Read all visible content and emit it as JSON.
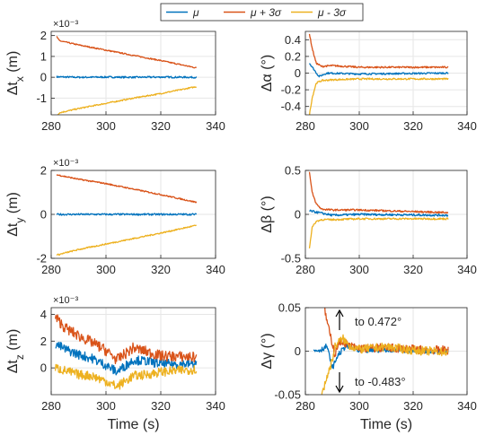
{
  "legend": {
    "items": [
      {
        "label": "μ",
        "color": "#0072BD"
      },
      {
        "label": "μ + 3σ",
        "color": "#D95319"
      },
      {
        "label": "μ - 3σ",
        "color": "#EDB120"
      }
    ]
  },
  "chart_data": [
    {
      "type": "line",
      "panel": "tx",
      "ylabel_main": "Δt",
      "ylabel_sub": "x",
      "ylabel_unit": " (m)",
      "xlabel": "",
      "exponent": "×10⁻³",
      "xlim": [
        280,
        340
      ],
      "ylim": [
        -1.8,
        2.2
      ],
      "xticks": [
        280,
        300,
        320,
        340
      ],
      "yticks": [
        -1,
        0,
        1,
        2
      ],
      "grid": true,
      "series": [
        {
          "name": "μ",
          "color": "#0072BD",
          "x": [
            282,
            290,
            300,
            310,
            320,
            333
          ],
          "y": [
            0.02,
            0.0,
            0.01,
            0.0,
            0.01,
            0.0
          ],
          "noise": 0.04
        },
        {
          "name": "μ + 3σ",
          "color": "#D95319",
          "x": [
            282,
            283,
            290,
            300,
            310,
            320,
            333
          ],
          "y": [
            1.95,
            1.75,
            1.55,
            1.3,
            1.05,
            0.8,
            0.45
          ],
          "noise": 0.03
        },
        {
          "name": "μ - 3σ",
          "color": "#EDB120",
          "x": [
            282,
            283,
            290,
            300,
            310,
            320,
            333
          ],
          "y": [
            -1.85,
            -1.7,
            -1.5,
            -1.25,
            -1.0,
            -0.78,
            -0.45
          ],
          "noise": 0.03
        }
      ]
    },
    {
      "type": "line",
      "panel": "alpha",
      "ylabel_main": "Δα",
      "ylabel_sub": "",
      "ylabel_unit": " (°)",
      "xlabel": "",
      "xlim": [
        280,
        340
      ],
      "ylim": [
        -0.5,
        0.5
      ],
      "xticks": [
        280,
        300,
        320,
        340
      ],
      "yticks": [
        -0.4,
        -0.2,
        0,
        0.2,
        0.4
      ],
      "grid": true,
      "series": [
        {
          "name": "μ",
          "color": "#0072BD",
          "x": [
            281.5,
            285,
            288,
            300,
            333
          ],
          "y": [
            0.12,
            -0.04,
            0.0,
            -0.01,
            0.0
          ],
          "noise": 0.01
        },
        {
          "name": "μ + 3σ",
          "color": "#D95319",
          "x": [
            281.5,
            282.5,
            284,
            286,
            290,
            300,
            333
          ],
          "y": [
            0.47,
            0.3,
            0.12,
            0.08,
            0.09,
            0.07,
            0.07
          ],
          "noise": 0.01
        },
        {
          "name": "μ - 3σ",
          "color": "#EDB120",
          "x": [
            281.5,
            282.5,
            284,
            286,
            290,
            300,
            333
          ],
          "y": [
            -0.5,
            -0.3,
            -0.12,
            -0.09,
            -0.08,
            -0.07,
            -0.07
          ],
          "noise": 0.01
        }
      ]
    },
    {
      "type": "line",
      "panel": "ty",
      "ylabel_main": "Δt",
      "ylabel_sub": "y",
      "ylabel_unit": " (m)",
      "xlabel": "",
      "exponent": "×10⁻³",
      "xlim": [
        280,
        340
      ],
      "ylim": [
        -2,
        2
      ],
      "xticks": [
        280,
        300,
        320,
        340
      ],
      "yticks": [
        -2,
        0,
        2
      ],
      "grid": true,
      "series": [
        {
          "name": "μ",
          "color": "#0072BD",
          "x": [
            282,
            300,
            333
          ],
          "y": [
            0.0,
            0.0,
            0.0
          ],
          "noise": 0.04
        },
        {
          "name": "μ + 3σ",
          "color": "#D95319",
          "x": [
            282,
            290,
            300,
            310,
            320,
            333
          ],
          "y": [
            1.8,
            1.6,
            1.4,
            1.15,
            0.9,
            0.55
          ],
          "noise": 0.03
        },
        {
          "name": "μ - 3σ",
          "color": "#EDB120",
          "x": [
            282,
            290,
            300,
            310,
            320,
            333
          ],
          "y": [
            -1.85,
            -1.6,
            -1.35,
            -1.1,
            -0.85,
            -0.5
          ],
          "noise": 0.03
        }
      ]
    },
    {
      "type": "line",
      "panel": "beta",
      "ylabel_main": "Δβ",
      "ylabel_sub": "",
      "ylabel_unit": " (°)",
      "xlabel": "",
      "xlim": [
        280,
        340
      ],
      "ylim": [
        -0.5,
        0.5
      ],
      "xticks": [
        280,
        300,
        320,
        340
      ],
      "yticks": [
        -0.5,
        0,
        0.5
      ],
      "grid": true,
      "series": [
        {
          "name": "μ",
          "color": "#0072BD",
          "x": [
            281.5,
            285,
            290,
            300,
            333
          ],
          "y": [
            0.04,
            0.02,
            -0.01,
            0.0,
            -0.01
          ],
          "noise": 0.012
        },
        {
          "name": "μ + 3σ",
          "color": "#D95319",
          "x": [
            281.5,
            282.5,
            284,
            286,
            290,
            300,
            333
          ],
          "y": [
            0.48,
            0.25,
            0.12,
            0.06,
            0.05,
            0.05,
            0.02
          ],
          "noise": 0.01
        },
        {
          "name": "μ - 3σ",
          "color": "#EDB120",
          "x": [
            281.5,
            282.5,
            284,
            286,
            290,
            300,
            333
          ],
          "y": [
            -0.38,
            -0.15,
            -0.08,
            -0.06,
            -0.06,
            -0.05,
            -0.05
          ],
          "noise": 0.01
        }
      ]
    },
    {
      "type": "line",
      "panel": "tz",
      "ylabel_main": "Δt",
      "ylabel_sub": "z",
      "ylabel_unit": " (m)",
      "xlabel": "Time (s)",
      "exponent": "×10⁻³",
      "xlim": [
        280,
        340
      ],
      "ylim": [
        -2,
        4.5
      ],
      "xticks": [
        280,
        300,
        320,
        340
      ],
      "yticks": [
        0,
        2,
        4
      ],
      "grid": true,
      "series": [
        {
          "name": "μ",
          "color": "#0072BD",
          "x": [
            281.5,
            285,
            290,
            295,
            300,
            304,
            310,
            315,
            320,
            333
          ],
          "y": [
            1.8,
            1.4,
            1.0,
            0.7,
            0.2,
            -0.3,
            0.6,
            0.5,
            0.3,
            0.3
          ],
          "noise": 0.35
        },
        {
          "name": "μ + 3σ",
          "color": "#D95319",
          "x": [
            281.5,
            285,
            290,
            295,
            300,
            304,
            310,
            315,
            320,
            333
          ],
          "y": [
            3.8,
            3.0,
            2.4,
            1.9,
            1.3,
            0.6,
            1.5,
            1.2,
            0.9,
            0.8
          ],
          "noise": 0.4
        },
        {
          "name": "μ - 3σ",
          "color": "#EDB120",
          "x": [
            281.5,
            285,
            290,
            295,
            300,
            304,
            310,
            315,
            320,
            333
          ],
          "y": [
            0.0,
            -0.2,
            -0.5,
            -0.6,
            -1.0,
            -1.4,
            -0.6,
            -0.5,
            -0.3,
            -0.1
          ],
          "noise": 0.35
        }
      ]
    },
    {
      "type": "line",
      "panel": "gamma",
      "ylabel_main": "Δγ",
      "ylabel_sub": "",
      "ylabel_unit": " (°)",
      "xlabel": "Time (s)",
      "xlim": [
        280,
        340
      ],
      "ylim": [
        -0.05,
        0.05
      ],
      "xticks": [
        280,
        300,
        320,
        340
      ],
      "yticks": [
        -0.05,
        0,
        0.05
      ],
      "grid": true,
      "annotations": [
        {
          "text": "to 0.472°",
          "direction": "up"
        },
        {
          "text": "to -0.483°",
          "direction": "down"
        }
      ],
      "series": [
        {
          "name": "μ",
          "color": "#0072BD",
          "x": [
            283,
            286,
            288,
            290,
            292,
            295,
            300,
            310,
            320,
            333
          ],
          "y": [
            0.0,
            0.002,
            0.006,
            -0.02,
            -0.005,
            0.006,
            0.0,
            0.002,
            0.001,
            0.0
          ],
          "noise": 0.003
        },
        {
          "name": "μ + 3σ",
          "color": "#D95319",
          "x": [
            287,
            288,
            289,
            290,
            291,
            292,
            294,
            296,
            300,
            310,
            320,
            333
          ],
          "y": [
            0.05,
            0.035,
            0.02,
            0.01,
            -0.005,
            0.008,
            0.012,
            0.006,
            0.003,
            0.004,
            0.002,
            0.001
          ],
          "noise": 0.005
        },
        {
          "name": "μ - 3σ",
          "color": "#EDB120",
          "x": [
            286,
            287,
            288,
            289,
            290,
            291,
            292,
            294,
            296,
            300,
            310,
            320,
            333
          ],
          "y": [
            -0.05,
            -0.04,
            -0.03,
            -0.02,
            -0.01,
            0.005,
            0.01,
            0.014,
            0.007,
            0.002,
            0.005,
            0.001,
            -0.001
          ],
          "noise": 0.005
        }
      ]
    }
  ]
}
